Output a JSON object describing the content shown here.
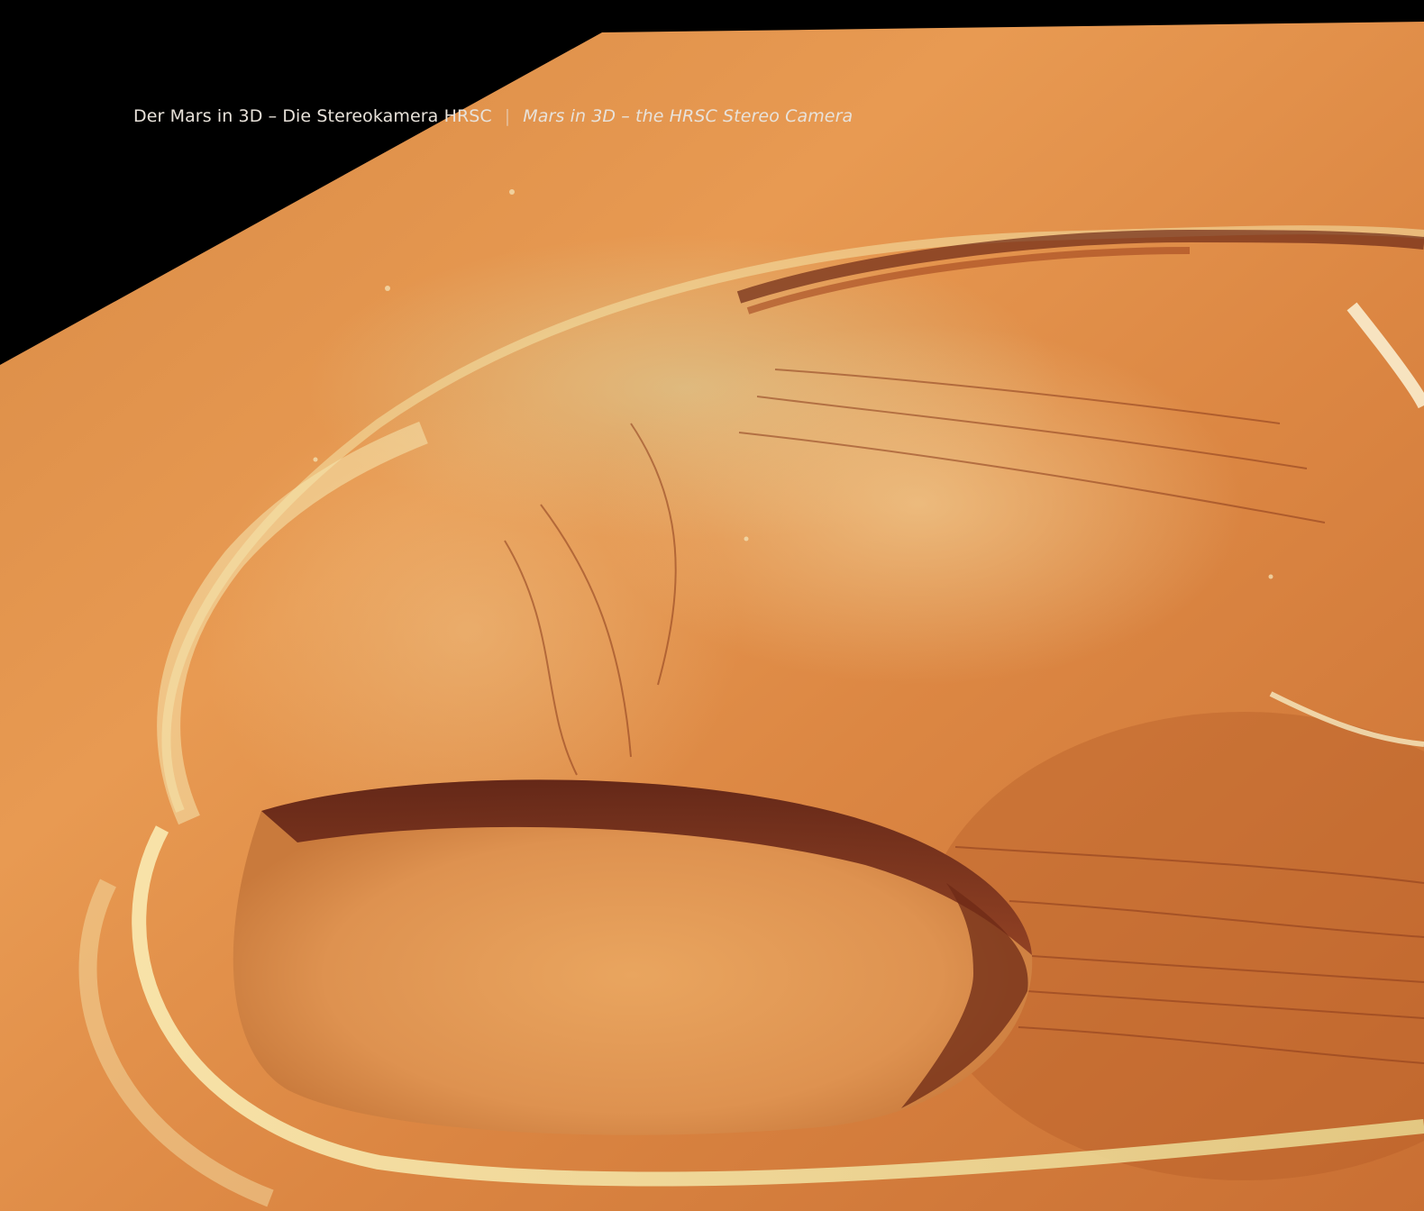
{
  "header": {
    "title_de": "Der Mars in 3D – Die Stereokamera HRSC",
    "separator": "|",
    "title_en": "Mars in 3D – the HRSC Stereo Camera"
  },
  "colors": {
    "background": "#000000",
    "surface_light": "#e79a4f",
    "surface_dark": "#b4541f",
    "caldera_shadow": "#5a1f14",
    "highlight": "#f3e6a6",
    "header_text": "#e8e2da"
  }
}
